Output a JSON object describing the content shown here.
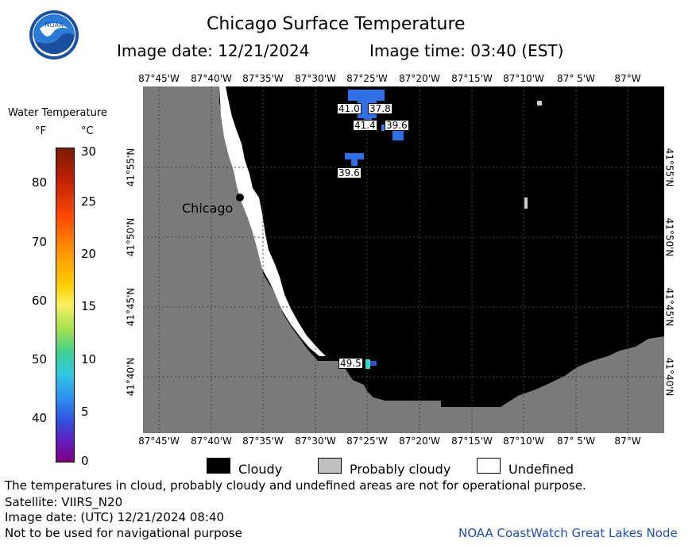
{
  "header": {
    "title": "Chicago Surface Temperature",
    "image_date_text": "Image date: 12/21/2024",
    "image_time_text": "Image time: 03:40 (EST)"
  },
  "map": {
    "city_label": "Chicago",
    "top_lon_labels": [
      "87°45'W",
      "87°40'W",
      "87°35'W",
      "87°30'W",
      "87°25'W",
      "87°20'W",
      "87°15'W",
      "87°10'W",
      "87° 5'W",
      "87°W"
    ],
    "bottom_lon_labels": [
      "87°45'W",
      "87°40'W",
      "87°35'W",
      "87°30'W",
      "87°25'W",
      "87°20'W",
      "87°15'W",
      "87°10'W",
      "87° 5'W",
      "87°W"
    ],
    "lat_labels": [
      "41°55'N",
      "41°50'N",
      "41°45'N",
      "41°40'N"
    ],
    "temp_labels": [
      "41.0",
      "37.8",
      "41.4",
      "39.6",
      "39.6",
      "49.5"
    ],
    "colors": {
      "cloud": "#000000",
      "land": "#7a7a7a",
      "probably_cloudy": "#c0c0c0",
      "water_blue": "#2f6fe8"
    }
  },
  "scale": {
    "title": "Water Temperature",
    "f_unit": "°F",
    "c_unit": "°C",
    "f_ticks": [
      "80",
      "70",
      "60",
      "50",
      "40"
    ],
    "c_ticks": [
      "30",
      "25",
      "20",
      "15",
      "10",
      "5",
      "0"
    ]
  },
  "legend": {
    "cloudy": "Cloudy",
    "probably_cloudy": "Probably cloudy",
    "undefined": "Undefined"
  },
  "footer": {
    "disclaimer": "The temperatures in cloud, probably cloudy and undefined areas are not for operational purpose.",
    "satellite": "Satellite: VIIRS_N20",
    "utc_date": "Image date: (UTC) 12/21/2024  08:40",
    "nav_warning": "Not to be used for navigational purpose",
    "credit": "NOAA CoastWatch Great Lakes Node"
  },
  "logo": {
    "text": "NOAA"
  }
}
